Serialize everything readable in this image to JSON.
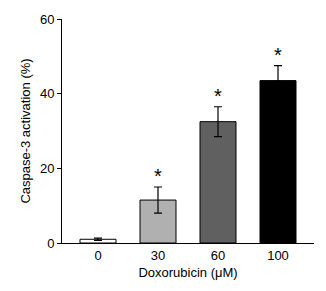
{
  "chart_data": {
    "type": "bar",
    "x_label": "Doxorubicin (μM)",
    "y_label": "Caspase-3 activation (%)",
    "categories": [
      "0",
      "30",
      "60",
      "100"
    ],
    "values": [
      1,
      11.5,
      32.5,
      43.5
    ],
    "errors": [
      0.3,
      3.5,
      4,
      4
    ],
    "colors": [
      "#ffffff",
      "#b0b0b0",
      "#606060",
      "#000000"
    ],
    "ylim": [
      0,
      60
    ],
    "yticks": [
      0,
      20,
      40,
      60
    ],
    "grid": false,
    "annotations": [
      {
        "x": "30",
        "text": "*"
      },
      {
        "x": "60",
        "text": "*"
      },
      {
        "x": "100",
        "text": "*"
      }
    ]
  }
}
